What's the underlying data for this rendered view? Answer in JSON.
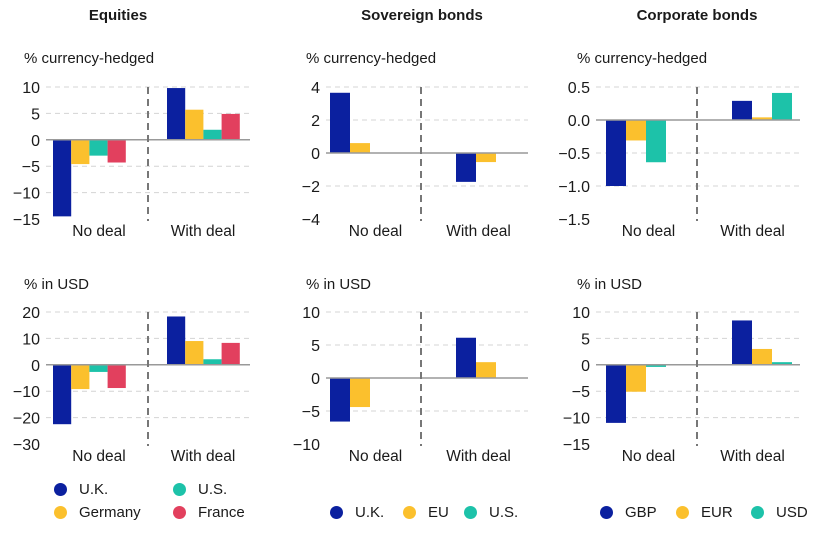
{
  "colors": {
    "navy": "#0b209f",
    "yellow": "#fbc02d",
    "teal": "#1dc2a9",
    "red": "#e2405e",
    "grid": "#d4d4d4",
    "axis": "#999999",
    "separator": "#777777"
  },
  "panels": [
    {
      "title": "Equities"
    },
    {
      "title": "Sovereign bonds"
    },
    {
      "title": "Corporate bonds"
    }
  ],
  "legends": [
    {
      "items": [
        {
          "label": "U.K.",
          "color": "#0b209f"
        },
        {
          "label": "U.S.",
          "color": "#1dc2a9"
        },
        {
          "label": "Germany",
          "color": "#fbc02d"
        },
        {
          "label": "France",
          "color": "#e2405e"
        }
      ]
    },
    {
      "items": [
        {
          "label": "U.K.",
          "color": "#0b209f"
        },
        {
          "label": "EU",
          "color": "#fbc02d"
        },
        {
          "label": "U.S.",
          "color": "#1dc2a9"
        }
      ]
    },
    {
      "items": [
        {
          "label": "GBP",
          "color": "#0b209f"
        },
        {
          "label": "EUR",
          "color": "#fbc02d"
        },
        {
          "label": "USD",
          "color": "#1dc2a9"
        }
      ]
    }
  ],
  "chart_data": [
    {
      "id": "equities-hedged",
      "type": "bar",
      "panel": "Equities",
      "title": "% currency-hedged",
      "categories": [
        "No deal",
        "With deal"
      ],
      "ylim": [
        -15,
        10
      ],
      "yticks": [
        -15,
        -10,
        -5,
        0,
        5,
        10
      ],
      "grid": true,
      "series": [
        {
          "name": "U.K.",
          "color": "#0b209f",
          "values": [
            -14.5,
            9.8
          ]
        },
        {
          "name": "Germany",
          "color": "#fbc02d",
          "values": [
            -4.6,
            5.7
          ]
        },
        {
          "name": "U.S.",
          "color": "#1dc2a9",
          "values": [
            -3.0,
            1.9
          ]
        },
        {
          "name": "France",
          "color": "#e2405e",
          "values": [
            -4.3,
            4.9
          ]
        }
      ]
    },
    {
      "id": "sovereign-hedged",
      "type": "bar",
      "panel": "Sovereign bonds",
      "title": "% currency-hedged",
      "categories": [
        "No deal",
        "With deal"
      ],
      "ylim": [
        -4,
        4
      ],
      "yticks": [
        -4,
        -2,
        0,
        2,
        4
      ],
      "grid": true,
      "series": [
        {
          "name": "U.K.",
          "color": "#0b209f",
          "values": [
            3.65,
            -1.75
          ]
        },
        {
          "name": "EU",
          "color": "#fbc02d",
          "values": [
            0.6,
            -0.55
          ]
        }
      ]
    },
    {
      "id": "corporate-hedged",
      "type": "bar",
      "panel": "Corporate bonds",
      "title": "% currency-hedged",
      "categories": [
        "No deal",
        "With deal"
      ],
      "ylim": [
        -1.5,
        0.5
      ],
      "yticks": [
        -1.5,
        -1.0,
        -0.5,
        0.0,
        0.5
      ],
      "tickDecimals": 1,
      "grid": true,
      "series": [
        {
          "name": "GBP",
          "color": "#0b209f",
          "values": [
            -1.0,
            0.29
          ]
        },
        {
          "name": "EUR",
          "color": "#fbc02d",
          "values": [
            -0.31,
            0.04
          ]
        },
        {
          "name": "USD",
          "color": "#1dc2a9",
          "values": [
            -0.64,
            0.41
          ]
        }
      ]
    },
    {
      "id": "equities-usd",
      "type": "bar",
      "panel": "Equities",
      "title": "% in USD",
      "categories": [
        "No deal",
        "With deal"
      ],
      "ylim": [
        -30,
        20
      ],
      "yticks": [
        -30,
        -20,
        -10,
        0,
        10,
        20
      ],
      "grid": true,
      "series": [
        {
          "name": "U.K.",
          "color": "#0b209f",
          "values": [
            -22.5,
            18.3
          ]
        },
        {
          "name": "Germany",
          "color": "#fbc02d",
          "values": [
            -9.2,
            9.0
          ]
        },
        {
          "name": "U.S.",
          "color": "#1dc2a9",
          "values": [
            -2.7,
            2.1
          ]
        },
        {
          "name": "France",
          "color": "#e2405e",
          "values": [
            -8.8,
            8.3
          ]
        }
      ]
    },
    {
      "id": "sovereign-usd",
      "type": "bar",
      "panel": "Sovereign bonds",
      "title": "% in USD",
      "categories": [
        "No deal",
        "With deal"
      ],
      "ylim": [
        -10,
        10
      ],
      "yticks": [
        -10,
        -5,
        0,
        5,
        10
      ],
      "grid": true,
      "series": [
        {
          "name": "U.K.",
          "color": "#0b209f",
          "values": [
            -6.6,
            6.1
          ]
        },
        {
          "name": "EU",
          "color": "#fbc02d",
          "values": [
            -4.4,
            2.4
          ]
        }
      ]
    },
    {
      "id": "corporate-usd",
      "type": "bar",
      "panel": "Corporate bonds",
      "title": "% in USD",
      "categories": [
        "No deal",
        "With deal"
      ],
      "ylim": [
        -15,
        10
      ],
      "yticks": [
        -15,
        -10,
        -5,
        0,
        5,
        10
      ],
      "grid": true,
      "series": [
        {
          "name": "GBP",
          "color": "#0b209f",
          "values": [
            -11.0,
            8.4
          ]
        },
        {
          "name": "EUR",
          "color": "#fbc02d",
          "values": [
            -5.1,
            3.0
          ]
        },
        {
          "name": "USD",
          "color": "#1dc2a9",
          "values": [
            -0.4,
            0.5
          ]
        }
      ]
    }
  ]
}
